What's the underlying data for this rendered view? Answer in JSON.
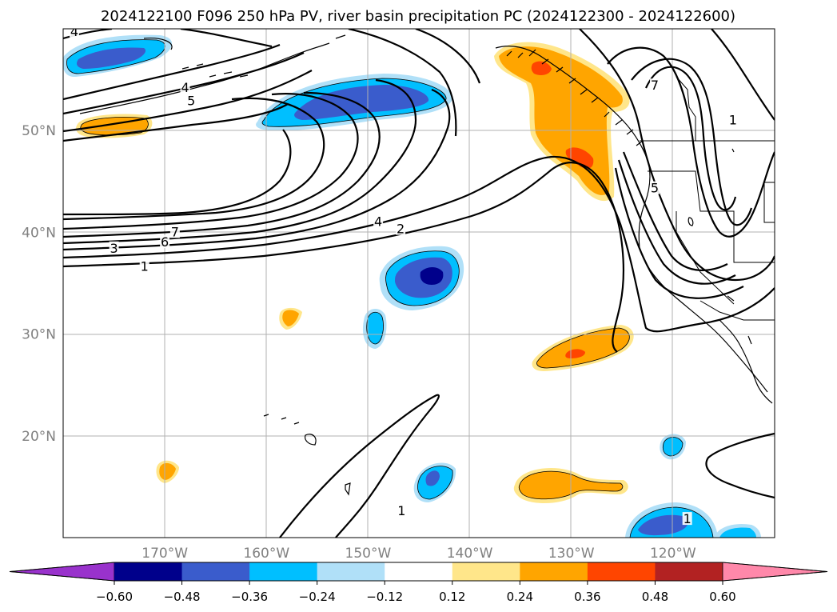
{
  "chart_data": {
    "type": "heatmap",
    "title": "2024122100 F096 250 hPa PV, river basin precipitation PC (2024122300 - 2024122600)",
    "map": {
      "lon_range": [
        -180,
        -110
      ],
      "lat_range": [
        10,
        60
      ],
      "lat_ticks": [
        {
          "value": 20,
          "label": "20°N"
        },
        {
          "value": 30,
          "label": "30°N"
        },
        {
          "value": 40,
          "label": "40°N"
        },
        {
          "value": 50,
          "label": "50°N"
        }
      ],
      "lon_ticks": [
        {
          "value": -170,
          "label": "170°W"
        },
        {
          "value": -160,
          "label": "160°W"
        },
        {
          "value": -150,
          "label": "150°W"
        },
        {
          "value": -140,
          "label": "140°W"
        },
        {
          "value": -130,
          "label": "130°W"
        },
        {
          "value": -120,
          "label": "120°W"
        }
      ],
      "grid": true
    },
    "colorbar": {
      "levels": [
        "−0.60",
        "−0.48",
        "−0.36",
        "−0.24",
        "−0.12",
        "0.12",
        "0.24",
        "0.36",
        "0.48",
        "0.60"
      ],
      "colors": [
        "#9932cc",
        "#00008b",
        "#3a5ccc",
        "#00bfff",
        "#b0e0f8",
        "#ffffff",
        "#ffe68a",
        "#ffa500",
        "#ff4500",
        "#b22222",
        "#ff88aa"
      ],
      "extend": "both"
    },
    "contour_labels": [
      {
        "text": "4",
        "lon": -178.9,
        "lat": 59.7
      },
      {
        "text": "4",
        "lon": -168.0,
        "lat": 54.2
      },
      {
        "text": "5",
        "lon": -167.4,
        "lat": 52.9
      },
      {
        "text": "7",
        "lon": -169.0,
        "lat": 40.0
      },
      {
        "text": "6",
        "lon": -170.0,
        "lat": 39.0
      },
      {
        "text": "3",
        "lon": -175.0,
        "lat": 38.4
      },
      {
        "text": "1",
        "lon": -172.0,
        "lat": 36.6
      },
      {
        "text": "4",
        "lon": -149.0,
        "lat": 41.0
      },
      {
        "text": "2",
        "lon": -146.8,
        "lat": 40.3
      },
      {
        "text": "7",
        "lon": -121.8,
        "lat": 54.4
      },
      {
        "text": "1",
        "lon": -114.1,
        "lat": 51.0
      },
      {
        "text": "5",
        "lon": -121.8,
        "lat": 44.3
      },
      {
        "text": "1",
        "lon": -146.7,
        "lat": 12.6
      },
      {
        "text": "1",
        "lon": -118.6,
        "lat": 11.8
      }
    ],
    "shaded_anomalies": [
      {
        "sign": "negative",
        "lon": -174.0,
        "lat": 57.2,
        "peak": -0.36
      },
      {
        "sign": "negative",
        "lon": -150.5,
        "lat": 53.0,
        "peak": -0.36
      },
      {
        "sign": "negative",
        "lon": -144.3,
        "lat": 36.2,
        "peak": -0.48
      },
      {
        "sign": "negative",
        "lon": -149.5,
        "lat": 30.5,
        "peak": -0.24
      },
      {
        "sign": "negative",
        "lon": -144.0,
        "lat": 15.0,
        "peak": -0.36
      },
      {
        "sign": "negative",
        "lon": -120.0,
        "lat": 19.0,
        "peak": -0.36
      },
      {
        "sign": "negative",
        "lon": -121.0,
        "lat": 11.5,
        "peak": -0.36
      },
      {
        "sign": "negative",
        "lon": -113.0,
        "lat": 10.5,
        "peak": -0.24
      },
      {
        "sign": "positive",
        "lon": -175.0,
        "lat": 50.4,
        "peak": 0.24
      },
      {
        "sign": "positive",
        "lon": -131.0,
        "lat": 56.0,
        "peak": 0.36
      },
      {
        "sign": "positive",
        "lon": -129.5,
        "lat": 48.5,
        "peak": 0.36
      },
      {
        "sign": "positive",
        "lon": -130.0,
        "lat": 28.5,
        "peak": 0.36
      },
      {
        "sign": "positive",
        "lon": -157.8,
        "lat": 31.6,
        "peak": 0.24
      },
      {
        "sign": "positive",
        "lon": -170.2,
        "lat": 16.7,
        "peak": 0.24
      },
      {
        "sign": "positive",
        "lon": -131.0,
        "lat": 15.0,
        "peak": 0.24
      }
    ]
  }
}
